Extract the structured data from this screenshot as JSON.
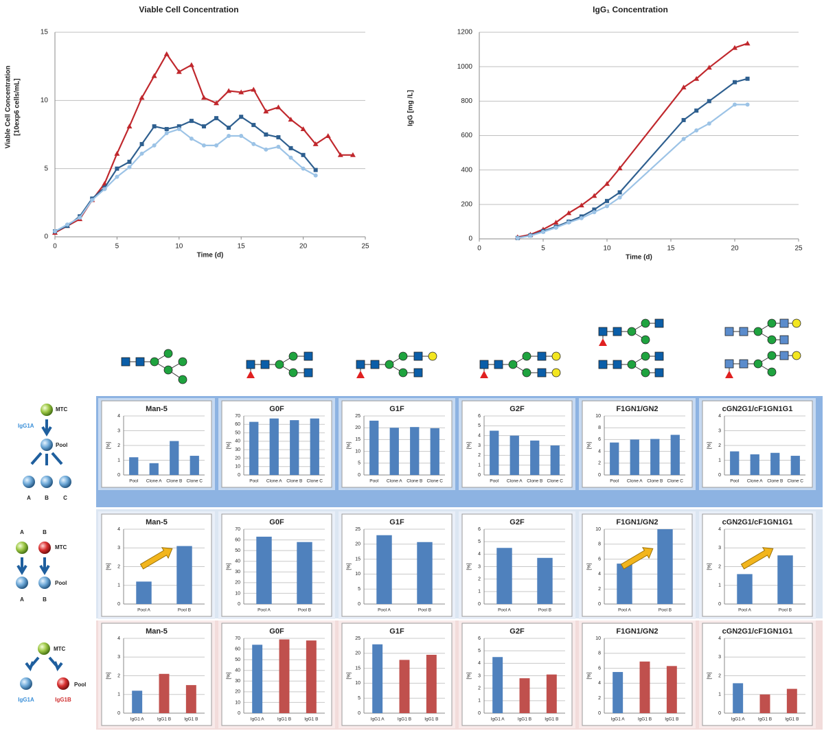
{
  "chart_data": [
    {
      "type": "line",
      "title": "Viable Cell Concentration",
      "x_label": "Time (d)",
      "y_label": [
        "Viable Cell Concentration",
        "[10exp6 cells/mL]"
      ],
      "xlim": [
        0,
        25
      ],
      "xticks": [
        0,
        5,
        10,
        15,
        20,
        25
      ],
      "ylim": [
        0,
        15
      ],
      "yticks": [
        0,
        5,
        10,
        15
      ],
      "grid": true,
      "series": [
        {
          "color": "#c0282d",
          "marker": "triangle",
          "x": [
            0,
            1,
            2,
            3,
            4,
            5,
            6,
            7,
            8,
            9,
            10,
            11,
            12,
            13,
            14,
            15,
            16,
            17,
            18,
            19,
            20,
            21,
            22,
            23,
            24
          ],
          "values": [
            0.3,
            0.8,
            1.3,
            2.7,
            3.9,
            6.1,
            8.1,
            10.2,
            11.8,
            13.4,
            12.1,
            12.6,
            10.2,
            9.8,
            10.7,
            10.6,
            10.8,
            9.2,
            9.5,
            8.6,
            7.9,
            6.8,
            7.4,
            6.0,
            6.0
          ]
        },
        {
          "color": "#2e5f8f",
          "marker": "square",
          "x": [
            0,
            1,
            2,
            3,
            4,
            5,
            6,
            7,
            8,
            9,
            10,
            11,
            12,
            13,
            14,
            15,
            16,
            17,
            18,
            19,
            20,
            21
          ],
          "values": [
            0.4,
            0.8,
            1.5,
            2.8,
            3.6,
            5.0,
            5.5,
            6.8,
            8.1,
            7.9,
            8.1,
            8.5,
            8.1,
            8.7,
            8.0,
            8.8,
            8.2,
            7.5,
            7.3,
            6.5,
            6.0,
            4.9
          ]
        },
        {
          "color": "#9cc3e6",
          "marker": "circle",
          "x": [
            0,
            1,
            2,
            3,
            4,
            5,
            6,
            7,
            8,
            9,
            10,
            11,
            12,
            13,
            14,
            15,
            16,
            17,
            18,
            19,
            20,
            21
          ],
          "values": [
            0.4,
            0.9,
            1.4,
            2.7,
            3.5,
            4.4,
            5.1,
            6.1,
            6.7,
            7.6,
            7.9,
            7.2,
            6.7,
            6.7,
            7.4,
            7.4,
            6.8,
            6.4,
            6.6,
            5.8,
            5.0,
            4.5
          ]
        }
      ]
    },
    {
      "type": "line",
      "title": "IgG₁ Concentration",
      "x_label": "Time (d)",
      "y_label": [
        "IgG [mg /L]"
      ],
      "xlim": [
        0,
        25
      ],
      "xticks": [
        0,
        5,
        10,
        15,
        20,
        25
      ],
      "ylim": [
        0,
        1200
      ],
      "yticks": [
        0,
        200,
        400,
        600,
        800,
        1000,
        1200
      ],
      "grid": true,
      "series": [
        {
          "color": "#c0282d",
          "marker": "triangle",
          "x": [
            3,
            4,
            5,
            6,
            7,
            8,
            9,
            10,
            11,
            16,
            17,
            18,
            20,
            21
          ],
          "values": [
            10,
            25,
            55,
            95,
            150,
            195,
            250,
            320,
            410,
            880,
            930,
            995,
            1110,
            1135
          ]
        },
        {
          "color": "#2e5f8f",
          "marker": "square",
          "x": [
            3,
            4,
            5,
            6,
            7,
            8,
            9,
            10,
            11,
            16,
            17,
            18,
            20,
            21
          ],
          "values": [
            5,
            20,
            45,
            70,
            100,
            130,
            170,
            220,
            270,
            690,
            745,
            800,
            910,
            930
          ]
        },
        {
          "color": "#9cc3e6",
          "marker": "circle",
          "x": [
            3,
            4,
            5,
            6,
            7,
            8,
            9,
            10,
            11,
            16,
            17,
            18,
            20,
            21
          ],
          "values": [
            5,
            18,
            40,
            65,
            95,
            120,
            155,
            190,
            240,
            580,
            630,
            670,
            780,
            780
          ]
        }
      ]
    },
    {
      "type": "bar",
      "title": "Man-5",
      "y_label": "[%]",
      "categories": [
        "Pool",
        "Clone A",
        "Clone B",
        "Clone C"
      ],
      "values": [
        1.2,
        0.8,
        2.3,
        1.3
      ],
      "color": "#4f81bd",
      "ylim": [
        0,
        4
      ],
      "yticks": [
        0,
        1,
        2,
        3,
        4
      ]
    },
    {
      "type": "bar",
      "title": "G0F",
      "y_label": "[%]",
      "categories": [
        "Pool",
        "Clone A",
        "Clone B",
        "Clone C"
      ],
      "values": [
        63,
        67,
        65,
        67
      ],
      "color": "#4f81bd",
      "ylim": [
        0,
        70
      ],
      "yticks": [
        0,
        10,
        20,
        30,
        40,
        50,
        60,
        70
      ]
    },
    {
      "type": "bar",
      "title": "G1F",
      "y_label": "[%]",
      "categories": [
        "Pool",
        "Clone A",
        "Clone B",
        "Clone C"
      ],
      "values": [
        23,
        20,
        20.3,
        19.8
      ],
      "color": "#4f81bd",
      "ylim": [
        0,
        25
      ],
      "yticks": [
        0,
        5,
        10,
        15,
        20,
        25
      ]
    },
    {
      "type": "bar",
      "title": "G2F",
      "y_label": "[%]",
      "categories": [
        "Pool",
        "Clone A",
        "Clone B",
        "Clone C"
      ],
      "values": [
        4.5,
        4.0,
        3.5,
        3.0
      ],
      "color": "#4f81bd",
      "ylim": [
        0,
        6
      ],
      "yticks": [
        0,
        1,
        2,
        3,
        4,
        5,
        6
      ]
    },
    {
      "type": "bar",
      "title": "F1GN1/GN2",
      "y_label": "[%]",
      "categories": [
        "Pool",
        "Clone A",
        "Clone B",
        "Clone C"
      ],
      "values": [
        5.5,
        6.0,
        6.1,
        6.8
      ],
      "color": "#4f81bd",
      "ylim": [
        0,
        10
      ],
      "yticks": [
        0,
        2,
        4,
        6,
        8,
        10
      ]
    },
    {
      "type": "bar",
      "title": "cGN2G1/cF1GN1G1",
      "y_label": "[%]",
      "categories": [
        "Pool",
        "Clone A",
        "Clone B",
        "Clone C"
      ],
      "values": [
        1.6,
        1.4,
        1.5,
        1.3
      ],
      "color": "#4f81bd",
      "ylim": [
        0,
        4
      ],
      "yticks": [
        0,
        1,
        2,
        3,
        4
      ]
    },
    {
      "type": "bar",
      "title": "Man-5",
      "y_label": "[%]",
      "categories": [
        "Pool A",
        "Pool B"
      ],
      "values": [
        1.2,
        3.1
      ],
      "color": "#4f81bd",
      "ylim": [
        0,
        4
      ],
      "yticks": [
        0,
        1,
        2,
        3,
        4
      ]
    },
    {
      "type": "bar",
      "title": "G0F",
      "y_label": "[%]",
      "categories": [
        "Pool A",
        "Pool B"
      ],
      "values": [
        63,
        58
      ],
      "color": "#4f81bd",
      "ylim": [
        0,
        70
      ],
      "yticks": [
        0,
        10,
        20,
        30,
        40,
        50,
        60,
        70
      ]
    },
    {
      "type": "bar",
      "title": "G1F",
      "y_label": "[%]",
      "categories": [
        "Pool A",
        "Pool B"
      ],
      "values": [
        23,
        20.7
      ],
      "color": "#4f81bd",
      "ylim": [
        0,
        25
      ],
      "yticks": [
        0,
        5,
        10,
        15,
        20,
        25
      ]
    },
    {
      "type": "bar",
      "title": "G2F",
      "y_label": "[%]",
      "categories": [
        "Pool A",
        "Pool B"
      ],
      "values": [
        4.5,
        3.7
      ],
      "color": "#4f81bd",
      "ylim": [
        0,
        6
      ],
      "yticks": [
        0,
        1,
        2,
        3,
        4,
        5,
        6
      ]
    },
    {
      "type": "bar",
      "title": "F1GN1/GN2",
      "y_label": "[%]",
      "categories": [
        "Pool A",
        "Pool B"
      ],
      "values": [
        5.4,
        10.0
      ],
      "color": "#4f81bd",
      "ylim": [
        0,
        10
      ],
      "yticks": [
        0,
        2,
        4,
        6,
        8,
        10
      ]
    },
    {
      "type": "bar",
      "title": "cGN2G1/cF1GN1G1",
      "y_label": "[%]",
      "categories": [
        "Pool A",
        "Pool B"
      ],
      "values": [
        1.6,
        2.6
      ],
      "color": "#4f81bd",
      "ylim": [
        0,
        4
      ],
      "yticks": [
        0,
        1,
        2,
        3,
        4
      ]
    },
    {
      "type": "bar",
      "title": "Man-5",
      "y_label": "[%]",
      "categories": [
        "IgG1 A",
        "IgG1 B",
        "IgG1 B"
      ],
      "values": [
        1.2,
        2.1,
        1.5
      ],
      "colors": [
        "#4f81bd",
        "#c0504d",
        "#c0504d"
      ],
      "ylim": [
        0,
        4
      ],
      "yticks": [
        0,
        1,
        2,
        3,
        4
      ]
    },
    {
      "type": "bar",
      "title": "G0F",
      "y_label": "[%]",
      "categories": [
        "IgG1 A",
        "IgG1 B",
        "IgG1 B"
      ],
      "values": [
        64,
        69,
        68
      ],
      "colors": [
        "#4f81bd",
        "#c0504d",
        "#c0504d"
      ],
      "ylim": [
        0,
        70
      ],
      "yticks": [
        0,
        10,
        20,
        30,
        40,
        50,
        60,
        70
      ]
    },
    {
      "type": "bar",
      "title": "G1F",
      "y_label": "[%]",
      "categories": [
        "IgG1 A",
        "IgG1 B",
        "IgG1 B"
      ],
      "values": [
        23,
        17.8,
        19.5
      ],
      "colors": [
        "#4f81bd",
        "#c0504d",
        "#c0504d"
      ],
      "ylim": [
        0,
        25
      ],
      "yticks": [
        0,
        5,
        10,
        15,
        20,
        25
      ]
    },
    {
      "type": "bar",
      "title": "G2F",
      "y_label": "[%]",
      "categories": [
        "IgG1 A",
        "IgG1 B",
        "IgG1 B"
      ],
      "values": [
        4.5,
        2.8,
        3.1
      ],
      "colors": [
        "#4f81bd",
        "#c0504d",
        "#c0504d"
      ],
      "ylim": [
        0,
        6
      ],
      "yticks": [
        0,
        1,
        2,
        3,
        4,
        5,
        6
      ]
    },
    {
      "type": "bar",
      "title": "F1GN1/GN2",
      "y_label": "[%]",
      "categories": [
        "IgG1 A",
        "IgG1 B",
        "IgG1 B"
      ],
      "values": [
        5.5,
        6.9,
        6.3
      ],
      "colors": [
        "#4f81bd",
        "#c0504d",
        "#c0504d"
      ],
      "ylim": [
        0,
        10
      ],
      "yticks": [
        0,
        2,
        4,
        6,
        8,
        10
      ]
    },
    {
      "type": "bar",
      "title": "cGN2G1/cF1GN1G1",
      "y_label": "[%]",
      "categories": [
        "IgG1 A",
        "IgG1 B",
        "IgG1 B"
      ],
      "values": [
        1.6,
        1.0,
        1.3
      ],
      "colors": [
        "#4f81bd",
        "#c0504d",
        "#c0504d"
      ],
      "ylim": [
        0,
        4
      ],
      "yticks": [
        0,
        1,
        2,
        3,
        4
      ]
    }
  ],
  "diagrams": [
    {
      "labels": [
        "MTC",
        "IgG1A",
        "Pool",
        "A",
        "B",
        "C"
      ]
    },
    {
      "labels": [
        "A",
        "B",
        "MTC",
        "Pool",
        "A",
        "B"
      ]
    },
    {
      "labels": [
        "MTC",
        "Pool",
        "IgG1A",
        "IgG1B"
      ]
    }
  ]
}
